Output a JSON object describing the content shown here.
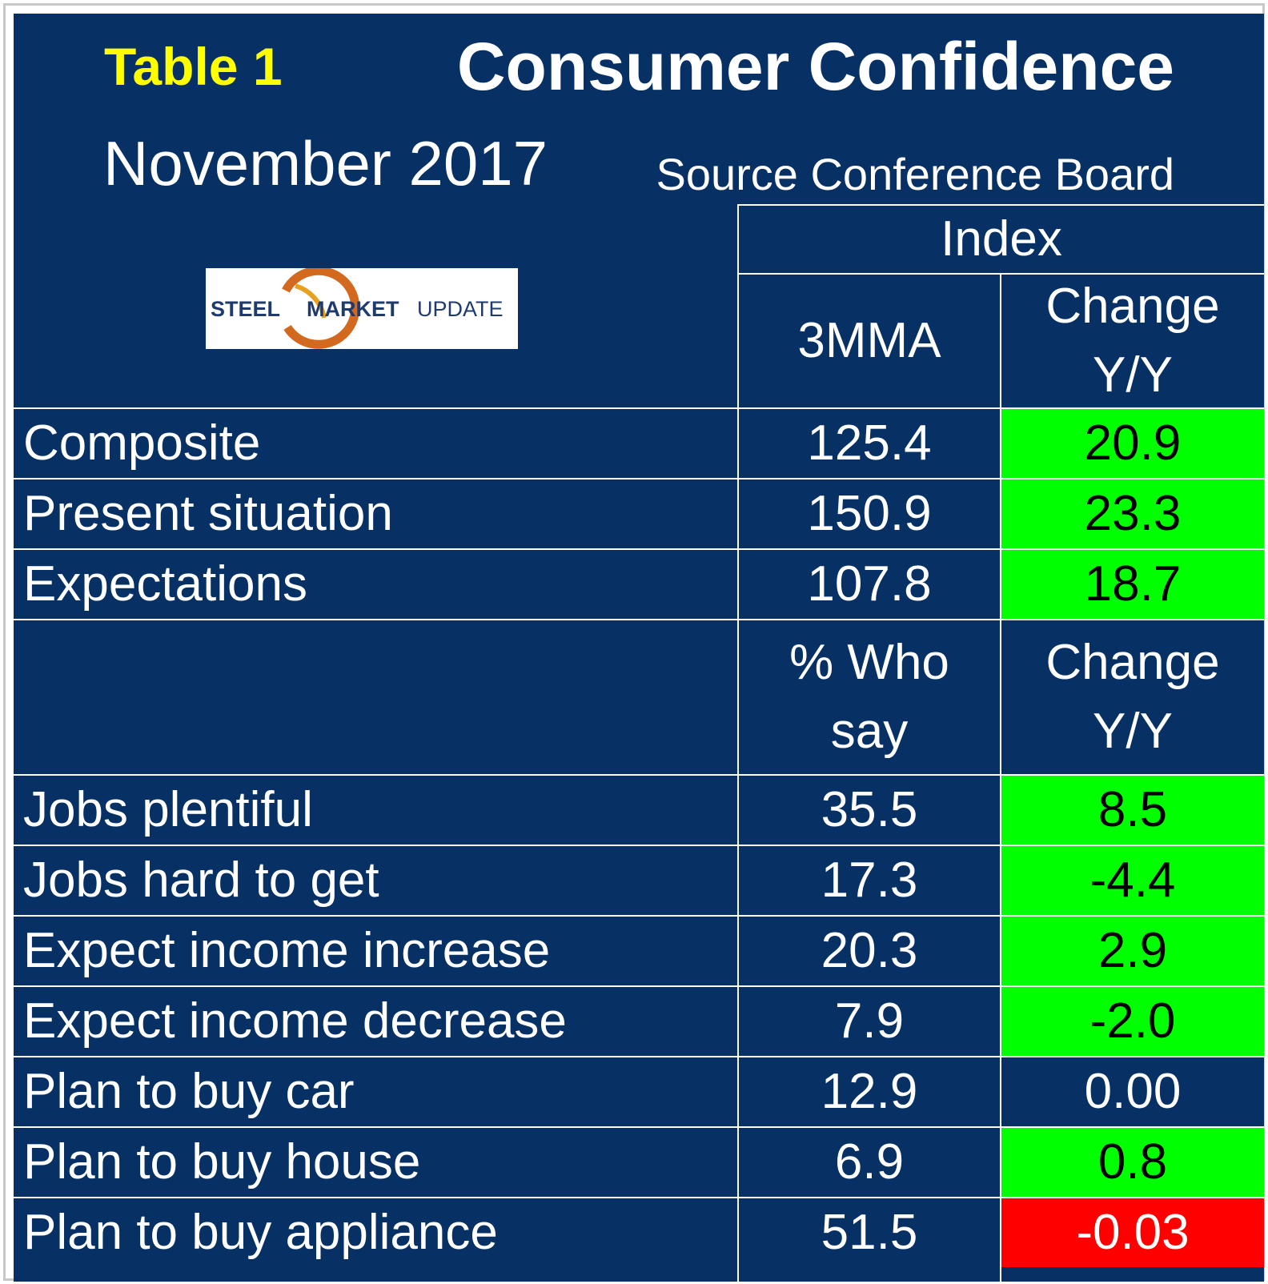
{
  "header": {
    "table_label": "Table 1",
    "title": "Consumer Confidence",
    "month": "November 2017",
    "source": "Source Conference Board"
  },
  "logo": {
    "text_bold": "STEEL",
    "text_mid": "MARKET",
    "text_light": "UPDATE"
  },
  "colors": {
    "background": "#073064",
    "positive": "#00ff00",
    "negative": "#ff0000",
    "neutral": "#073064",
    "label_highlight": "#ffff00"
  },
  "chart_data": {
    "type": "table",
    "title": "Consumer Confidence",
    "sections": [
      {
        "group_header": "Index",
        "value_header": [
          "3MMA"
        ],
        "change_header": [
          "Change",
          "Y/Y"
        ],
        "rows": [
          {
            "label": "Composite",
            "value": "125.4",
            "change": "20.9",
            "status": "positive"
          },
          {
            "label": "Present situation",
            "value": "150.9",
            "change": "23.3",
            "status": "positive"
          },
          {
            "label": "Expectations",
            "value": "107.8",
            "change": "18.7",
            "status": "positive"
          }
        ]
      },
      {
        "value_header": [
          "% Who",
          "say"
        ],
        "change_header": [
          "Change",
          "Y/Y"
        ],
        "rows": [
          {
            "label": "Jobs plentiful",
            "value": "35.5",
            "change": "8.5",
            "status": "positive"
          },
          {
            "label": "Jobs hard to get",
            "value": "17.3",
            "change": "-4.4",
            "status": "positive"
          },
          {
            "label": "Expect income increase",
            "value": "20.3",
            "change": "2.9",
            "status": "positive"
          },
          {
            "label": "Expect income decrease",
            "value": "7.9",
            "change": "-2.0",
            "status": "positive"
          },
          {
            "label": "Plan to buy car",
            "value": "12.9",
            "change": "0.00",
            "status": "neutral"
          },
          {
            "label": "Plan to buy house",
            "value": "6.9",
            "change": "0.8",
            "status": "positive"
          },
          {
            "label": "Plan to buy appliance",
            "value": "51.5",
            "change": "-0.03",
            "status": "negative"
          }
        ]
      }
    ]
  }
}
